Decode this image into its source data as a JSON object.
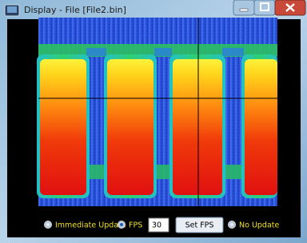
{
  "window": {
    "title": "Display - File [File2.bin]"
  },
  "controls": {
    "immediate_update": "Immediate Update",
    "fps_label": "FPS",
    "fps_value": "30",
    "set_fps": "Set FPS",
    "no_update": "No Update"
  }
}
